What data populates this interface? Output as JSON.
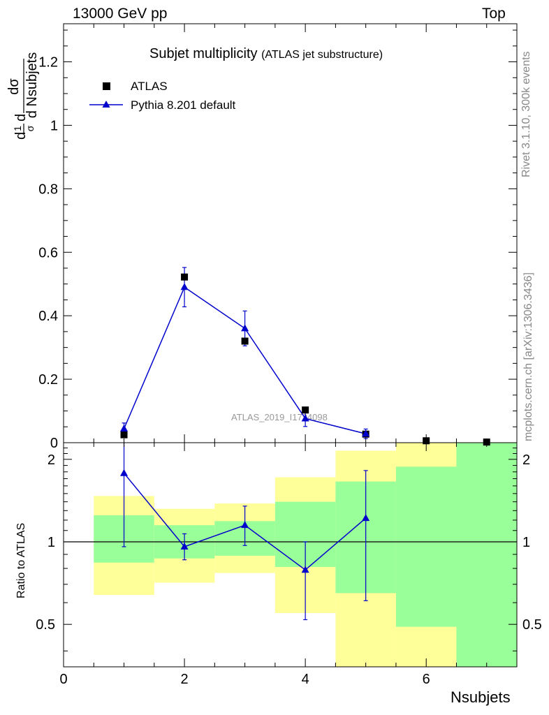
{
  "header": {
    "energy_label": "13000 GeV pp",
    "process_label": "Top"
  },
  "side_labels": {
    "rivet": "Rivet 3.1.10,  300k events",
    "mcplots": "mcplots.cern.ch [arXiv:1306.3436]"
  },
  "main_plot": {
    "title": "Subjet multiplicity",
    "subtitle": "(ATLAS jet substructure)",
    "analysis_tag": "ATLAS_2019_I1724098",
    "ylabel": {
      "prefix_d": "d",
      "one": "1",
      "sigma_inv": "σ",
      "d": "d",
      "dsigma": "dσ",
      "dvar": "d Nsubjets"
    },
    "legend": {
      "data_label": "ATLAS",
      "mc_label": "Pythia 8.201 default"
    }
  },
  "ratio_plot": {
    "ylabel": "Ratio to ATLAS"
  },
  "xaxis_label": "Nsubjets",
  "colors": {
    "data": "#000000",
    "mc": "#0000cc",
    "band_inner": "#99ff99",
    "band_outer": "#ffff99",
    "side_text": "#888888"
  },
  "chart_data": {
    "type": "scatter",
    "xlabel": "Nsubjets",
    "xlim": [
      0,
      7.5
    ],
    "main": {
      "ylim": [
        0,
        1.32
      ],
      "yticks": [
        "0",
        "0.2",
        "0.4",
        "0.6",
        "0.8",
        "1",
        "1.2"
      ],
      "series": [
        {
          "name": "ATLAS",
          "marker": "square",
          "x": [
            1,
            2,
            3,
            4,
            5,
            6,
            7
          ],
          "y": [
            0.025,
            0.522,
            0.32,
            0.103,
            0.027,
            0.006,
            0.002
          ]
        },
        {
          "name": "Pythia 8.201 default",
          "marker": "triangle",
          "x": [
            1,
            2,
            3,
            4,
            5
          ],
          "y": [
            0.044,
            0.49,
            0.36,
            0.076,
            0.028
          ],
          "yerr": [
            0.018,
            0.062,
            0.055,
            0.025,
            0.015
          ]
        }
      ]
    },
    "ratio": {
      "ylim": [
        0.35,
        2.3
      ],
      "yticks": [
        "0.5",
        "1",
        "2"
      ],
      "reference": 1,
      "mc_ratio": {
        "x": [
          1,
          2,
          3,
          4,
          5
        ],
        "y": [
          1.78,
          0.96,
          1.15,
          0.79,
          1.22
        ],
        "yerr_low": [
          0.82,
          0.1,
          0.18,
          0.27,
          0.61
        ],
        "yerr_high": [
          0.52,
          0.11,
          0.2,
          0.21,
          0.6
        ]
      },
      "bands": [
        {
          "xlow": 0.5,
          "xhigh": 1.5,
          "inner": [
            0.84,
            1.25
          ],
          "outer": [
            0.64,
            1.47
          ]
        },
        {
          "xlow": 1.5,
          "xhigh": 2.5,
          "inner": [
            0.87,
            1.15
          ],
          "outer": [
            0.71,
            1.32
          ]
        },
        {
          "xlow": 2.5,
          "xhigh": 3.5,
          "inner": [
            0.89,
            1.19
          ],
          "outer": [
            0.77,
            1.38
          ]
        },
        {
          "xlow": 3.5,
          "xhigh": 4.5,
          "inner": [
            0.81,
            1.4
          ],
          "outer": [
            0.55,
            1.72
          ]
        },
        {
          "xlow": 4.5,
          "xhigh": 5.5,
          "inner": [
            0.65,
            1.66
          ],
          "outer": [
            0.3,
            2.15
          ]
        },
        {
          "xlow": 5.5,
          "xhigh": 6.5,
          "inner": [
            0.49,
            1.88
          ],
          "outer": [
            0.3,
            2.4
          ]
        },
        {
          "xlow": 6.5,
          "xhigh": 7.5,
          "inner": [
            0.3,
            2.4
          ],
          "outer": [
            0.3,
            2.4
          ]
        }
      ]
    },
    "xticks": [
      "0",
      "2",
      "4",
      "6"
    ],
    "grid": false,
    "legend_position": "top-left"
  }
}
